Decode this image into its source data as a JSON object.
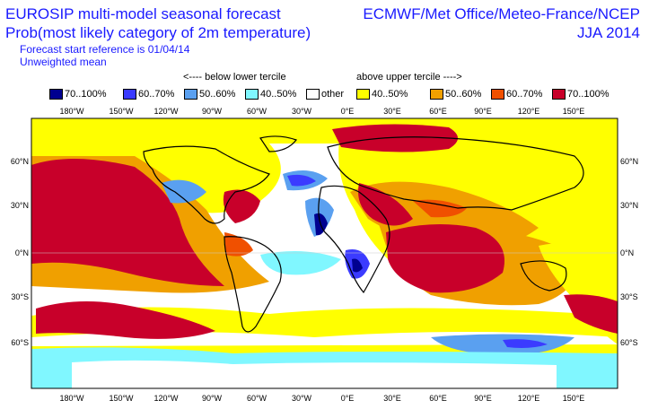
{
  "header": {
    "title_line1": "EUROSIP multi-model seasonal forecast",
    "title_line2": "Prob(most likely category of 2m temperature)",
    "forecast_start": "Forecast start reference is 01/04/14",
    "mean_type": "Unweighted mean",
    "centres": "ECMWF/Met Office/Meteo-France/NCEP",
    "season": "JJA 2014"
  },
  "legend": {
    "below_label": "<---- below lower tercile",
    "above_label": "above upper tercile ---->",
    "items": [
      {
        "label": "70..100%",
        "color": "#000090"
      },
      {
        "label": "60..70%",
        "color": "#3b3bff"
      },
      {
        "label": "50..60%",
        "color": "#5aa0f0"
      },
      {
        "label": "40..50%",
        "color": "#80f7ff"
      },
      {
        "label": "other",
        "color": "#ffffff"
      },
      {
        "label": "40..50%",
        "color": "#ffff00"
      },
      {
        "label": "50..60%",
        "color": "#f0a000"
      },
      {
        "label": "60..70%",
        "color": "#f05000"
      },
      {
        "label": "70..100%",
        "color": "#c8002a"
      }
    ]
  },
  "map": {
    "lon_labels": [
      "180°W",
      "150°W",
      "120°W",
      "90°W",
      "60°W",
      "30°W",
      "0°E",
      "30°E",
      "60°E",
      "90°E",
      "120°E",
      "150°E"
    ],
    "lat_labels": [
      "60°N",
      "30°N",
      "0°N",
      "30°S",
      "60°S"
    ]
  }
}
